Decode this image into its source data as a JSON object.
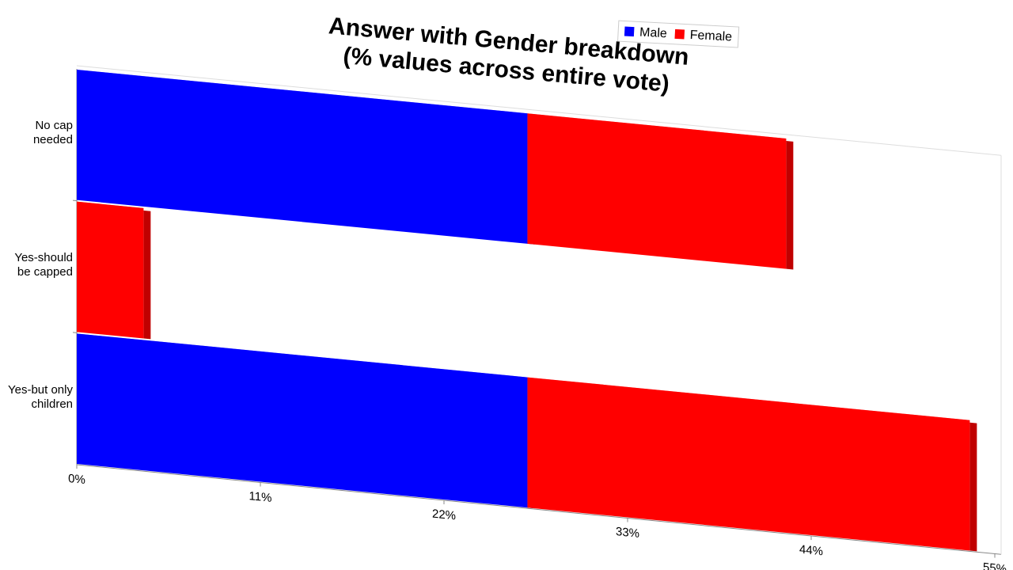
{
  "chart_data": {
    "type": "stacked-bar-horizontal",
    "title": "Answer with Gender breakdown",
    "subtitle": "(% values across entire vote)",
    "categories": [
      "No cap needed",
      "Yes-should be capped",
      "Yes-but only children"
    ],
    "series": [
      {
        "name": "Male",
        "color": "#0000ff",
        "values": [
          27,
          0,
          27
        ]
      },
      {
        "name": "Female",
        "color": "#ff0000",
        "values": [
          15.5,
          4,
          26.5
        ]
      }
    ],
    "xlim": [
      0,
      55
    ],
    "xticks": [
      {
        "value": 0,
        "label": "0%"
      },
      {
        "value": 11,
        "label": "11%"
      },
      {
        "value": 22,
        "label": "22%"
      },
      {
        "value": 33,
        "label": "33%"
      },
      {
        "value": 44,
        "label": "44%"
      },
      {
        "value": 55,
        "label": "55%"
      }
    ],
    "legend": "top"
  }
}
